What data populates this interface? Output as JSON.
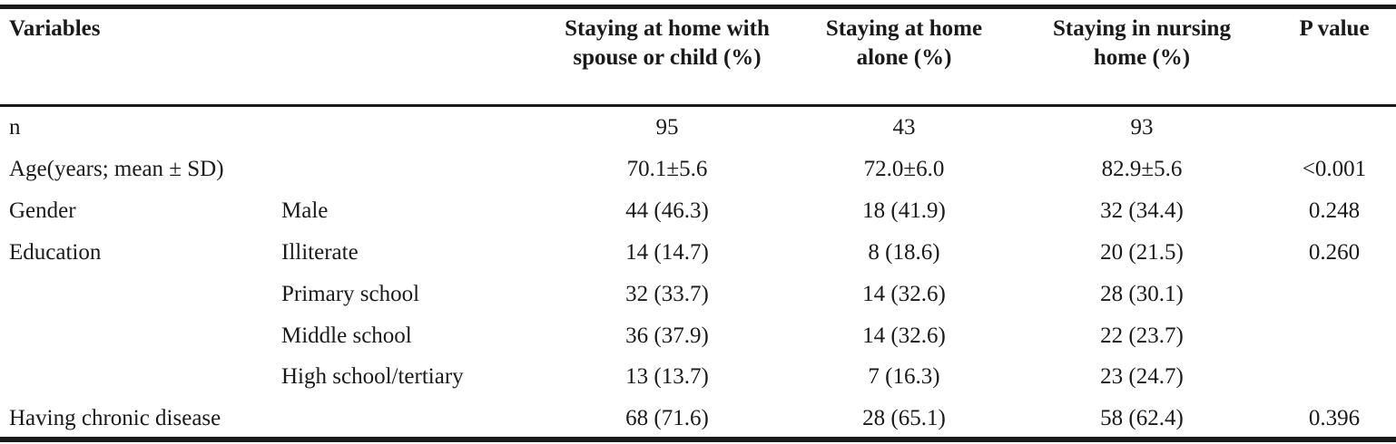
{
  "header": {
    "variables": "Variables",
    "col1": "Staying at home with spouse or child (%)",
    "col2": "Staying at home alone (%)",
    "col3": "Staying in nursing home (%)",
    "col4": "P value"
  },
  "rows": [
    {
      "variable": "n",
      "sub": "",
      "c1": "95",
      "c2": "43",
      "c3": "93",
      "p": ""
    },
    {
      "variable": "Age(years; mean ± SD)",
      "sub": "",
      "c1": "70.1±5.6",
      "c2": "72.0±6.0",
      "c3": "82.9±5.6",
      "p": "<0.001"
    },
    {
      "variable": "Gender",
      "sub": "Male",
      "c1": "44 (46.3)",
      "c2": "18 (41.9)",
      "c3": "32 (34.4)",
      "p": "0.248"
    },
    {
      "variable": "Education",
      "sub": "Illiterate",
      "c1": "14 (14.7)",
      "c2": "8 (18.6)",
      "c3": "20 (21.5)",
      "p": "0.260"
    },
    {
      "variable": "",
      "sub": "Primary school",
      "c1": "32 (33.7)",
      "c2": "14 (32.6)",
      "c3": "28 (30.1)",
      "p": ""
    },
    {
      "variable": "",
      "sub": "Middle school",
      "c1": "36 (37.9)",
      "c2": "14 (32.6)",
      "c3": "22 (23.7)",
      "p": ""
    },
    {
      "variable": "",
      "sub": "High school/tertiary",
      "c1": "13 (13.7)",
      "c2": "7 (16.3)",
      "c3": "23 (24.7)",
      "p": ""
    },
    {
      "variable": "Having chronic disease",
      "sub": "",
      "c1": "68 (71.6)",
      "c2": "28 (65.1)",
      "c3": "58 (62.4)",
      "p": "0.396"
    }
  ]
}
